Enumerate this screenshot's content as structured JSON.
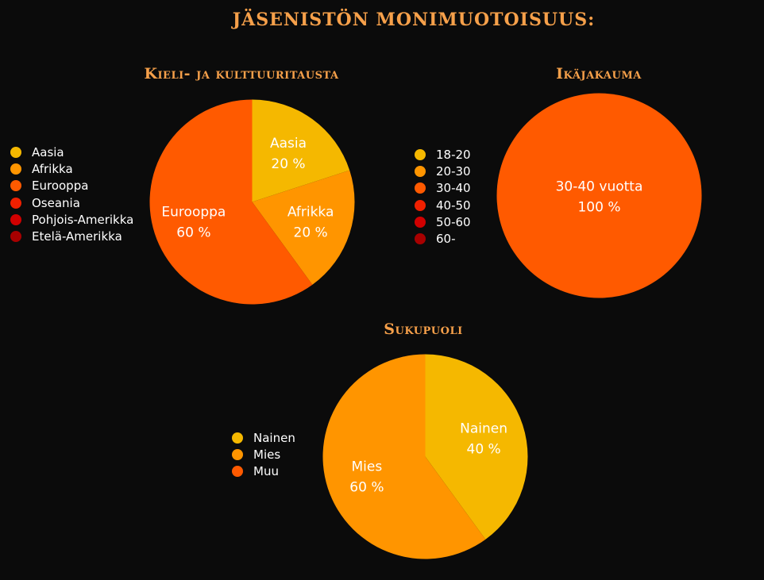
{
  "title": "JÄSENISTÖN MONIMUOTOISUUS:",
  "colors": {
    "background": "#0b0b0b",
    "title": "#f6a04a",
    "yellow": "#f5b800",
    "orange": "#ff9500",
    "red_orange": "#ff5a00",
    "red": "#f02000",
    "dark_red": "#d10000",
    "maroon": "#a80000"
  },
  "chart_data": [
    {
      "type": "pie",
      "title": "Kieli- ja kulttuuritausta",
      "legend_position": "left",
      "categories": [
        "Aasia",
        "Afrikka",
        "Eurooppa",
        "Oseania",
        "Pohjois-Amerikka",
        "Etelä-Amerikka"
      ],
      "values": [
        20,
        20,
        60,
        0,
        0,
        0
      ],
      "colors": [
        "#f5b800",
        "#ff9500",
        "#ff5a00",
        "#f02000",
        "#d10000",
        "#a80000"
      ],
      "data_labels": [
        {
          "name": "Aasia",
          "value": "20 %"
        },
        {
          "name": "Afrikka",
          "value": "20 %"
        },
        {
          "name": "Eurooppa",
          "value": "60 %"
        }
      ]
    },
    {
      "type": "pie",
      "title": "Ikäjakauma",
      "legend_position": "left",
      "categories": [
        "18-20",
        "20-30",
        "30-40",
        "40-50",
        "50-60",
        "60-"
      ],
      "values": [
        0,
        0,
        100,
        0,
        0,
        0
      ],
      "colors": [
        "#f5b800",
        "#ff9500",
        "#ff5a00",
        "#f02000",
        "#d10000",
        "#a80000"
      ],
      "data_labels": [
        {
          "name": "30-40 vuotta",
          "value": "100 %"
        }
      ]
    },
    {
      "type": "pie",
      "title": "Sukupuoli",
      "legend_position": "left",
      "categories": [
        "Nainen",
        "Mies",
        "Muu"
      ],
      "values": [
        40,
        60,
        0
      ],
      "colors": [
        "#f5b800",
        "#ff9500",
        "#ff5a00"
      ],
      "data_labels": [
        {
          "name": "Nainen",
          "value": "40 %"
        },
        {
          "name": "Mies",
          "value": "60 %"
        }
      ]
    }
  ]
}
